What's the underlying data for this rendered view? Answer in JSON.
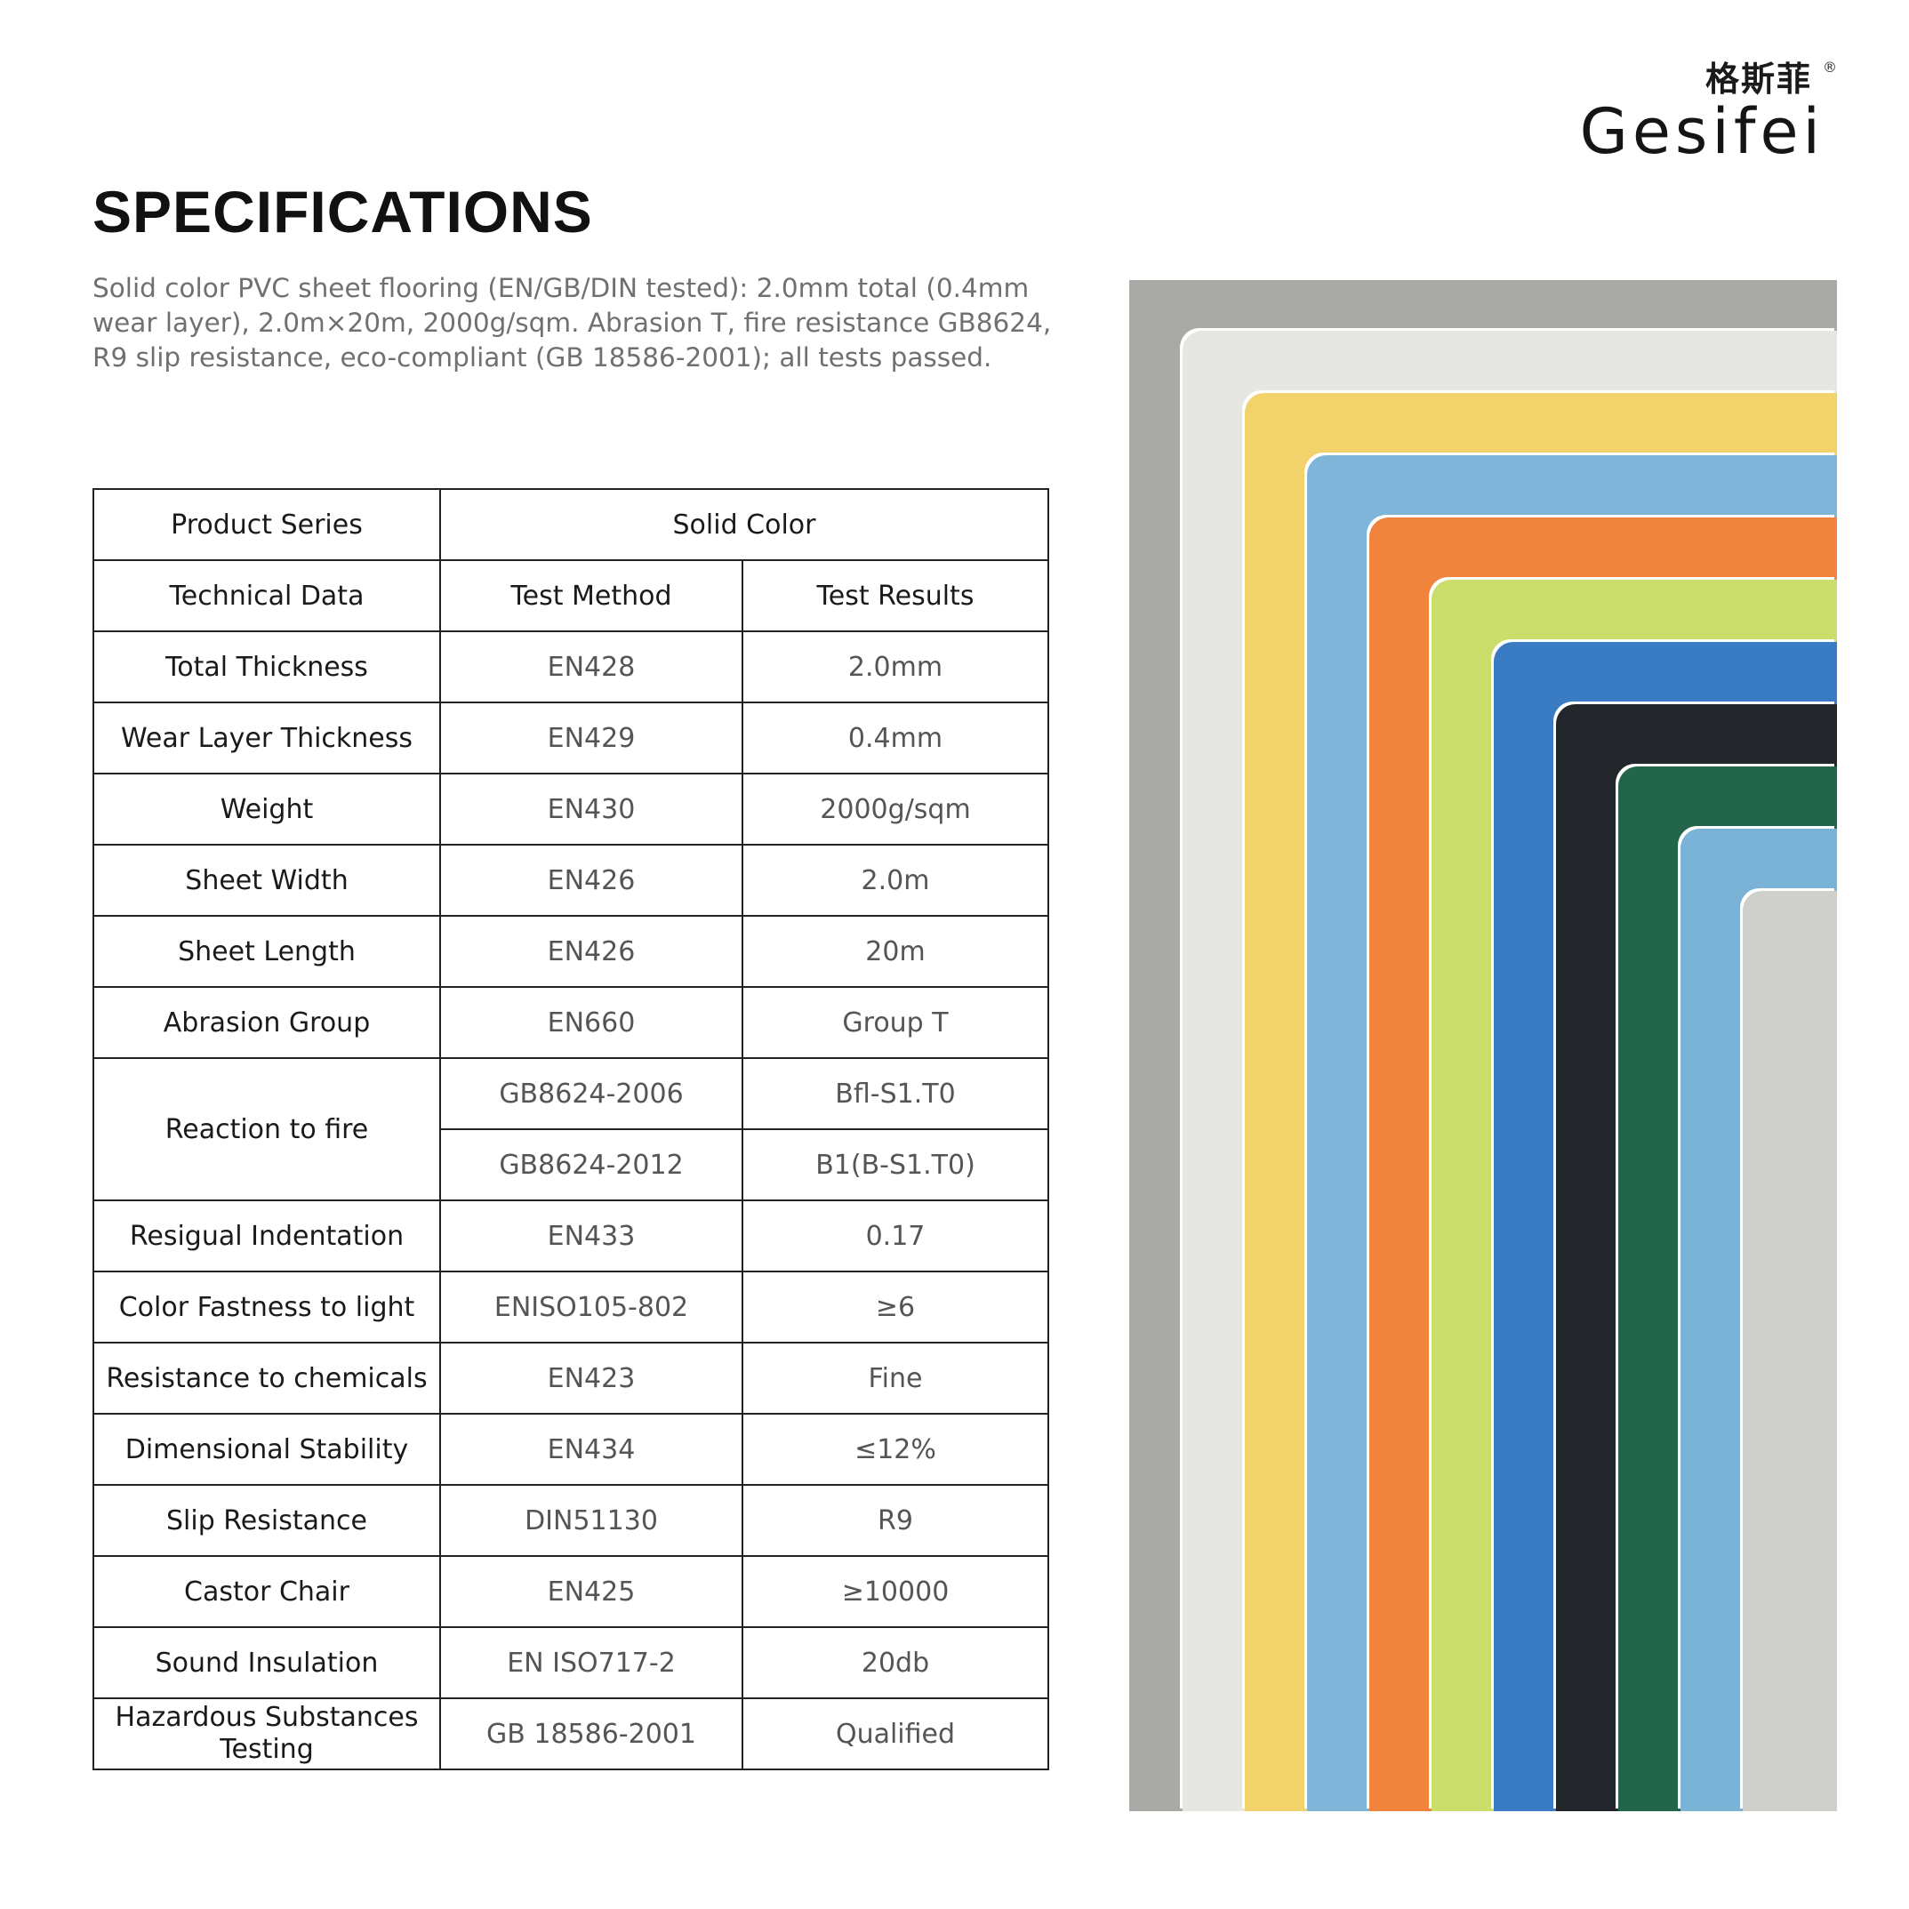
{
  "brand": {
    "name_cn": "格斯菲",
    "name_en": "Gesifei",
    "registered_mark": "®"
  },
  "page": {
    "title": "SPECIFICATIONS",
    "description": "Solid color PVC sheet flooring (EN/GB/DIN tested): 2.0mm total (0.4mm wear layer), 2.0m×20m, 2000g/sqm. Abrasion T, fire resistance GB8624, R9 slip resistance, eco-compliant (GB 18586-2001); all tests passed."
  },
  "table": {
    "series_label": "Product Series",
    "series_value": "Solid Color",
    "headers": [
      "Technical Data",
      "Test Method",
      "Test Results"
    ],
    "rows": [
      {
        "name": "Total Thickness",
        "method": "EN428",
        "result": "2.0mm"
      },
      {
        "name": "Wear Layer Thickness",
        "method": "EN429",
        "result": "0.4mm"
      },
      {
        "name": "Weight",
        "method": "EN430",
        "result": "2000g/sqm"
      },
      {
        "name": "Sheet Width",
        "method": "EN426",
        "result": "2.0m"
      },
      {
        "name": "Sheet Length",
        "method": "EN426",
        "result": "20m"
      },
      {
        "name": "Abrasion Group",
        "method": "EN660",
        "result": "Group T"
      },
      {
        "name": "Reaction to fire",
        "method": "GB8624-2006",
        "result": "Bfl-S1.T0",
        "method2": "GB8624-2012",
        "result2": "B1(B-S1.T0)"
      },
      {
        "name": "Resigual Indentation",
        "method": "EN433",
        "result": "0.17"
      },
      {
        "name": "Color Fastness to light",
        "method": "ENISO105-802",
        "result": "≥6"
      },
      {
        "name": "Resistance to chemicals",
        "method": "EN423",
        "result": "Fine"
      },
      {
        "name": "Dimensional Stability",
        "method": "EN434",
        "result": "≤12%"
      },
      {
        "name": "Slip Resistance",
        "method": "DIN51130",
        "result": "R9"
      },
      {
        "name": "Castor Chair",
        "method": "EN425",
        "result": "≥10000"
      },
      {
        "name": "Sound Insulation",
        "method": "EN ISO717-2",
        "result": "20db"
      },
      {
        "name": "Hazardous Substances Testing",
        "method": "GB 18586-2001",
        "result": "Qualified"
      }
    ]
  },
  "swatch_colors": [
    "#a9aaa6",
    "#e6e6e2",
    "#f2d36b",
    "#7fb5d8",
    "#f0843c",
    "#cbde6b",
    "#3a7cc4",
    "#23262b",
    "#22654a",
    "#7ab3d6",
    "#cfcfcb"
  ]
}
